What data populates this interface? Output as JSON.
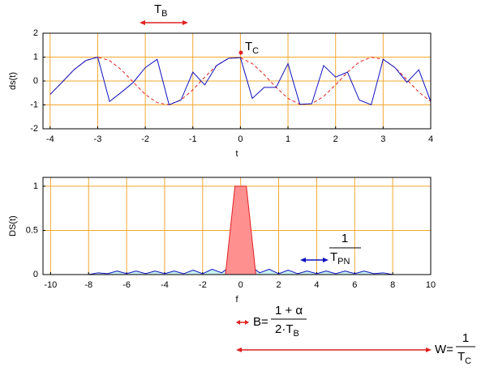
{
  "chart_data": [
    {
      "type": "line",
      "ylabel": "ds(t)",
      "xlabel": "t",
      "xlim": [
        -4.15,
        4
      ],
      "xticks": [
        -4,
        -3,
        -2,
        -1,
        0,
        1,
        2,
        3,
        4
      ],
      "ylim": [
        -2,
        2
      ],
      "yticks": [
        -2,
        -1,
        0,
        1,
        2
      ],
      "grid": true,
      "grid_color": "#f0a830",
      "x": [
        -4,
        -3.75,
        -3.5,
        -3.25,
        -3,
        -2.75,
        -2.5,
        -2.25,
        -2,
        -1.75,
        -1.5,
        -1.25,
        -1,
        -0.75,
        -0.5,
        -0.25,
        0,
        0.25,
        0.5,
        0.75,
        1,
        1.25,
        1.5,
        1.75,
        2,
        2.25,
        2.5,
        2.75,
        3,
        3.25,
        3.5,
        3.75,
        4
      ],
      "series": [
        {
          "color": "#e02020",
          "linestyle": "dashed",
          "values": [
            -0.561,
            -0.054,
            0.468,
            0.857,
            1,
            0.857,
            0.468,
            -0.054,
            -0.561,
            -0.908,
            -0.994,
            -0.797,
            -0.37,
            0.162,
            0.647,
            0.948,
            0.977,
            0.727,
            0.267,
            -0.267,
            -0.727,
            -0.977,
            -0.948,
            -0.647,
            -0.162,
            0.37,
            0.797,
            0.994,
            0.908,
            0.561,
            0.054,
            -0.468,
            -0.857
          ]
        },
        {
          "color": "#1010c0",
          "linestyle": "solid",
          "values": [
            -0.561,
            -0.054,
            0.468,
            0.857,
            1,
            -0.857,
            -0.468,
            -0.054,
            0.561,
            0.908,
            -0.994,
            -0.797,
            0.37,
            -0.162,
            0.647,
            0.948,
            0.977,
            -0.727,
            -0.267,
            -0.267,
            0.727,
            -0.977,
            -0.948,
            0.647,
            0.162,
            0.37,
            -0.797,
            -0.994,
            0.908,
            0.561,
            -0.054,
            0.468,
            -0.857
          ]
        }
      ]
    },
    {
      "type": "area",
      "ylabel": "DS(t)",
      "xlabel": "f",
      "xlim": [
        -10.4,
        10
      ],
      "xticks": [
        -10,
        -8,
        -6,
        -4,
        -2,
        0,
        2,
        4,
        6,
        8,
        10
      ],
      "ylim": [
        0,
        1.1
      ],
      "yticks": [
        0,
        0.5,
        1
      ],
      "grid": true,
      "grid_color": "#f0a830",
      "series": [
        {
          "color": "#1010c0",
          "fill": "#c8f0f0",
          "x": [
            -8,
            -7.5,
            -7,
            -6.5,
            -6,
            -5.5,
            -5,
            -4.5,
            -4,
            -3.5,
            -3,
            -2.5,
            -2,
            -1.5,
            -1,
            -0.5,
            0,
            0.5,
            1,
            1.5,
            2,
            2.5,
            3,
            3.5,
            4,
            4.5,
            5,
            5.5,
            6,
            6.5,
            7,
            7.5,
            8
          ],
          "values": [
            0,
            0.02,
            0.01,
            0.04,
            0.01,
            0.04,
            0.01,
            0.04,
            0.01,
            0.04,
            0.01,
            0.05,
            0.01,
            0.06,
            0.02,
            0.1,
            0.1,
            0.1,
            0.02,
            0.06,
            0.01,
            0.05,
            0.01,
            0.04,
            0.01,
            0.04,
            0.01,
            0.04,
            0.01,
            0.04,
            0.01,
            0.02,
            0
          ]
        },
        {
          "color": "#e02020",
          "fill": "#ff9090",
          "x": [
            -0.8,
            -0.3,
            0.3,
            0.8
          ],
          "values": [
            0,
            1,
            1,
            0
          ]
        }
      ]
    }
  ],
  "annotations": {
    "tb": {
      "main": "T",
      "sub": "B"
    },
    "tc": {
      "main": "T",
      "sub": "C"
    },
    "tpn": {
      "num": "1",
      "main": "T",
      "sub": "PN"
    },
    "bandwidth": {
      "lhs": "B=",
      "num": "1 + α",
      "main": "2·T",
      "sub": "B"
    },
    "w": {
      "lhs": "W=",
      "num": "1",
      "main": "T",
      "sub": "C"
    }
  }
}
